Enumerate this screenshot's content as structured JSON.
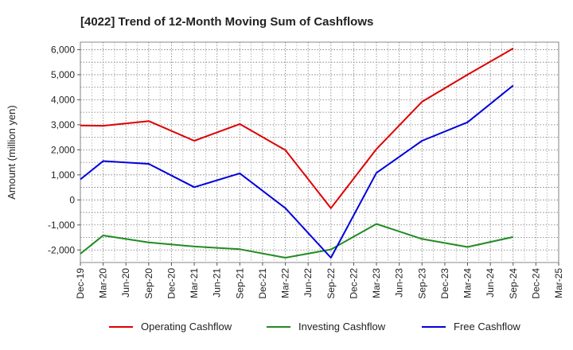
{
  "chart_data": {
    "type": "line",
    "title": "[4022]  Trend of 12-Month Moving Sum of Cashflows",
    "xlabel": "",
    "ylabel": "Amount (million yen)",
    "ylim": [
      -2500,
      6300
    ],
    "yticks": [
      -2000,
      -1000,
      0,
      1000,
      2000,
      3000,
      4000,
      5000,
      6000
    ],
    "ytick_labels": [
      "-2,000",
      "-1,000",
      "0",
      "1,000",
      "2,000",
      "3,000",
      "4,000",
      "5,000",
      "6,000"
    ],
    "categories": [
      "Dec-19",
      "Mar-20",
      "Jun-20",
      "Sep-20",
      "Dec-20",
      "Mar-21",
      "Jun-21",
      "Sep-21",
      "Dec-21",
      "Mar-22",
      "Jun-22",
      "Sep-22",
      "Dec-22",
      "Mar-23",
      "Jun-23",
      "Sep-23",
      "Dec-23",
      "Mar-24",
      "Jun-24",
      "Sep-24",
      "Dec-24",
      "Mar-25"
    ],
    "grid": true,
    "legend_position": "bottom",
    "series": [
      {
        "name": "Operating Cashflow",
        "color": "#dd0000",
        "values": [
          2970,
          2960,
          null,
          3150,
          null,
          2360,
          null,
          3030,
          null,
          1990,
          null,
          -330,
          null,
          2030,
          null,
          3920,
          null,
          5000,
          null,
          6050,
          null,
          null
        ]
      },
      {
        "name": "Investing Cashflow",
        "color": "#228B22",
        "values": [
          -2150,
          -1420,
          null,
          -1700,
          null,
          -1860,
          null,
          -1970,
          null,
          -2310,
          null,
          -1980,
          null,
          -960,
          null,
          -1560,
          null,
          -1880,
          null,
          -1480,
          null,
          null
        ]
      },
      {
        "name": "Free Cashflow",
        "color": "#0000dd",
        "values": [
          820,
          1550,
          null,
          1440,
          null,
          510,
          null,
          1060,
          null,
          -330,
          null,
          -2310,
          null,
          1080,
          null,
          2360,
          null,
          3100,
          null,
          4570,
          null,
          null
        ]
      }
    ]
  }
}
